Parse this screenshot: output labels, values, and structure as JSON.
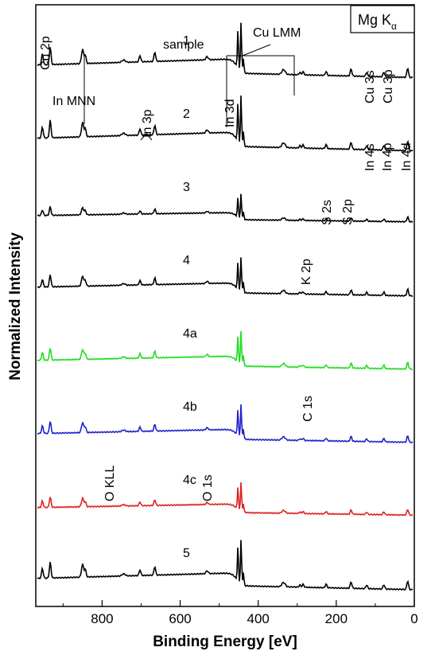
{
  "chart_data": {
    "type": "line",
    "title": "",
    "xlabel": "Binding Energy [eV]",
    "ylabel": "Normalized Intensity",
    "xlim": [
      970,
      0
    ],
    "x_reversed": true,
    "x_ticks": [
      {
        "value": 800,
        "label": "800"
      },
      {
        "value": 600,
        "label": "600"
      },
      {
        "value": 400,
        "label": "400"
      },
      {
        "value": 200,
        "label": "200"
      },
      {
        "value": 0,
        "label": "0"
      }
    ],
    "grid": false,
    "legend_box": {
      "text": "Mg K",
      "subscript": "α",
      "placement": "top-right"
    },
    "series_header": "sample",
    "series": [
      {
        "name": "1",
        "color": "#000000",
        "offset": 7,
        "amplitude": 1.0
      },
      {
        "name": "2",
        "color": "#000000",
        "offset": 6,
        "amplitude": 1.0
      },
      {
        "name": "3",
        "color": "#000000",
        "offset": 5,
        "amplitude": 0.5
      },
      {
        "name": "4",
        "color": "#000000",
        "offset": 4,
        "amplitude": 0.7
      },
      {
        "name": "4a",
        "color": "#22dd22",
        "offset": 3,
        "amplitude": 0.7
      },
      {
        "name": "4b",
        "color": "#2222cc",
        "offset": 2,
        "amplitude": 0.7
      },
      {
        "name": "4c",
        "color": "#dd2222",
        "offset": 1,
        "amplitude": 0.6
      },
      {
        "name": "5",
        "color": "#000000",
        "offset": 0,
        "amplitude": 0.9
      }
    ],
    "peaks": [
      {
        "label": "Cu 2p",
        "x": 935
      },
      {
        "label": "In MNN",
        "x": 850
      },
      {
        "label": "In 3p",
        "x": 703
      },
      {
        "label": "In 3p",
        "x": 665
      },
      {
        "label": "O KLL",
        "x": 745
      },
      {
        "label": "O 1s",
        "x": 531
      },
      {
        "label": "In 3d",
        "x": 445
      },
      {
        "label": "Cu LMM",
        "x": 335
      },
      {
        "label": "K 2p",
        "x": 293
      },
      {
        "label": "C 1s",
        "x": 285
      },
      {
        "label": "S 2s",
        "x": 226
      },
      {
        "label": "S 2p",
        "x": 162
      },
      {
        "label": "Cu 3s",
        "x": 122
      },
      {
        "label": "Cu 3p",
        "x": 75
      },
      {
        "label": "In 4s",
        "x": 122
      },
      {
        "label": "In 4p",
        "x": 78
      },
      {
        "label": "In 4d",
        "x": 17
      }
    ]
  }
}
